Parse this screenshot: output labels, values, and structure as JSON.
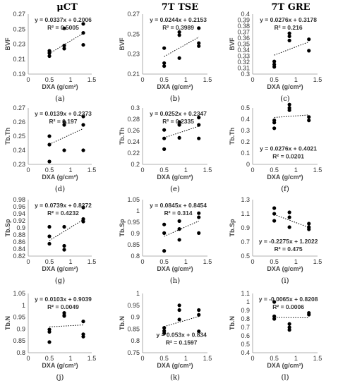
{
  "column_titles": [
    "μCT",
    "7T TSE",
    "7T GRE"
  ],
  "chart_data": [
    {
      "type": "scatter",
      "panel_label": "(a)",
      "xlabel": "DXA (g/cm²)",
      "ylabel": "BVF",
      "xlim": [
        0,
        1.5
      ],
      "ylim": [
        0.19,
        0.27
      ],
      "yticks": [
        "0.19",
        "0.21",
        "0.23",
        "0.25",
        "0.27"
      ],
      "xticks": [
        "0",
        "0.5",
        "1",
        "1.5"
      ],
      "equation": "y = 0.0337x + 0.2006",
      "r2": "R² = 0.5005",
      "slope": 0.0337,
      "intercept": 0.2006,
      "points": [
        [
          0.5,
          0.221
        ],
        [
          0.5,
          0.218
        ],
        [
          0.5,
          0.214
        ],
        [
          0.85,
          0.251
        ],
        [
          0.85,
          0.228
        ],
        [
          0.85,
          0.224
        ],
        [
          1.3,
          0.257
        ],
        [
          1.3,
          0.245
        ],
        [
          1.3,
          0.229
        ]
      ]
    },
    {
      "type": "scatter",
      "panel_label": "(b)",
      "xlabel": "DXA (g/cm²)",
      "ylabel": "BVF",
      "xlim": [
        0,
        1.5
      ],
      "ylim": [
        0.21,
        0.27
      ],
      "yticks": [
        "0.21",
        "0.23",
        "0.25",
        "0.27"
      ],
      "xticks": [
        "0",
        "0.5",
        "1",
        "1.5"
      ],
      "equation": "y = 0.0244x + 0.2153",
      "r2": "R² = 0.3989",
      "slope": 0.0244,
      "intercept": 0.2153,
      "points": [
        [
          0.5,
          0.236
        ],
        [
          0.5,
          0.221
        ],
        [
          0.5,
          0.218
        ],
        [
          0.85,
          0.252
        ],
        [
          0.85,
          0.249
        ],
        [
          0.85,
          0.226
        ],
        [
          1.3,
          0.256
        ],
        [
          1.3,
          0.241
        ],
        [
          1.3,
          0.238
        ]
      ]
    },
    {
      "type": "scatter",
      "panel_label": "(c)",
      "xlabel": "DXA (g/cm²)",
      "ylabel": "BVF",
      "xlim": [
        0,
        1.5
      ],
      "ylim": [
        0.3,
        0.4
      ],
      "yticks": [
        "0.3",
        "0.31",
        "0.32",
        "0.33",
        "0.34",
        "0.35",
        "0.36",
        "0.37",
        "0.38",
        "0.39",
        "0.4"
      ],
      "xticks": [
        "0",
        "0.5",
        "1",
        "1.5"
      ],
      "equation": "y = 0.0276x + 0.3178",
      "r2": "R² = 0.216",
      "slope": 0.0276,
      "intercept": 0.3178,
      "points": [
        [
          0.5,
          0.321
        ],
        [
          0.5,
          0.316
        ],
        [
          0.5,
          0.312
        ],
        [
          0.85,
          0.368
        ],
        [
          0.85,
          0.363
        ],
        [
          0.85,
          0.356
        ],
        [
          1.3,
          0.358
        ],
        [
          1.3,
          0.339
        ]
      ]
    },
    {
      "type": "scatter",
      "panel_label": "(d)",
      "xlabel": "DXA (g/cm²)",
      "ylabel": "Tb.Th",
      "xlim": [
        0,
        1.5
      ],
      "ylim": [
        0.23,
        0.27
      ],
      "yticks": [
        "0.23",
        "0.24",
        "0.25",
        "0.26",
        "0.27"
      ],
      "xticks": [
        "0",
        "0.5",
        "1",
        "1.5"
      ],
      "equation": "y = 0.0139x + 0.2373",
      "r2": "R² = 0.197",
      "slope": 0.0139,
      "intercept": 0.2373,
      "points": [
        [
          0.5,
          0.25
        ],
        [
          0.5,
          0.244
        ],
        [
          0.5,
          0.232
        ],
        [
          0.85,
          0.26
        ],
        [
          0.85,
          0.258
        ],
        [
          0.85,
          0.24
        ],
        [
          1.3,
          0.264
        ],
        [
          1.3,
          0.258
        ],
        [
          1.3,
          0.24
        ]
      ]
    },
    {
      "type": "scatter",
      "panel_label": "(e)",
      "xlabel": "DXA (g/cm²)",
      "ylabel": "Tb.Th",
      "xlim": [
        0,
        1.5
      ],
      "ylim": [
        0.2,
        0.3
      ],
      "yticks": [
        "0.2",
        "0.22",
        "0.24",
        "0.26",
        "0.28",
        "0.3"
      ],
      "xticks": [
        "0",
        "0.5",
        "1",
        "1.5"
      ],
      "equation": "y = 0.0252x + 0.2347",
      "r2": "R² = 0.2335",
      "slope": 0.0252,
      "intercept": 0.2347,
      "points": [
        [
          0.5,
          0.261
        ],
        [
          0.5,
          0.246
        ],
        [
          0.5,
          0.227
        ],
        [
          0.85,
          0.275
        ],
        [
          0.85,
          0.27
        ],
        [
          0.85,
          0.247
        ],
        [
          1.3,
          0.283
        ],
        [
          1.3,
          0.27
        ],
        [
          1.3,
          0.246
        ]
      ]
    },
    {
      "type": "scatter",
      "panel_label": "(f)",
      "xlabel": "DXA (g/cm²)",
      "ylabel": "Tb.Th",
      "xlim": [
        0,
        1.5
      ],
      "ylim": [
        0,
        0.5
      ],
      "yticks": [
        "0",
        "0.1",
        "0.2",
        "0.3",
        "0.4",
        "0.5"
      ],
      "xticks": [
        "0",
        "0.5",
        "1",
        "1.5"
      ],
      "equation": "y = 0.0276x + 0.4021",
      "r2": "R² = 0.0201",
      "slope": 0.0276,
      "intercept": 0.4021,
      "points": [
        [
          0.5,
          0.39
        ],
        [
          0.5,
          0.37
        ],
        [
          0.5,
          0.32
        ],
        [
          0.85,
          0.53
        ],
        [
          0.85,
          0.5
        ],
        [
          0.85,
          0.48
        ],
        [
          1.3,
          0.42
        ],
        [
          1.3,
          0.39
        ]
      ]
    },
    {
      "type": "scatter",
      "panel_label": "(g)",
      "xlabel": "DXA (g/cm²)",
      "ylabel": "Tb.Sp",
      "xlim": [
        0,
        1.5
      ],
      "ylim": [
        0.82,
        0.98
      ],
      "yticks": [
        "0.82",
        "0.84",
        "0.86",
        "0.88",
        "0.9",
        "0.92",
        "0.94",
        "0.96",
        "0.98"
      ],
      "xticks": [
        "0",
        "0.5",
        "1",
        "1.5"
      ],
      "equation": "y = 0.0739x + 0.8272",
      "r2": "R² = 0.4232",
      "slope": 0.0739,
      "intercept": 0.8272,
      "points": [
        [
          0.5,
          0.903
        ],
        [
          0.5,
          0.876
        ],
        [
          0.5,
          0.855
        ],
        [
          0.85,
          0.903
        ],
        [
          0.85,
          0.849
        ],
        [
          0.85,
          0.838
        ],
        [
          1.3,
          0.958
        ],
        [
          1.3,
          0.925
        ],
        [
          1.3,
          0.918
        ]
      ]
    },
    {
      "type": "scatter",
      "panel_label": "(h)",
      "xlabel": "DXA (g/cm²)",
      "ylabel": "Tb.Sp",
      "xlim": [
        0,
        1.5
      ],
      "ylim": [
        0.8,
        1.05
      ],
      "yticks": [
        "0.8",
        "0.85",
        "0.9",
        "0.95",
        "1",
        "1.05"
      ],
      "xticks": [
        "0",
        "0.5",
        "1",
        "1.5"
      ],
      "equation": "y = 0.0845x + 0.8454",
      "r2": "R² = 0.314",
      "slope": 0.0845,
      "intercept": 0.8454,
      "points": [
        [
          0.5,
          0.94
        ],
        [
          0.5,
          0.902
        ],
        [
          0.5,
          0.823
        ],
        [
          0.85,
          0.955
        ],
        [
          0.85,
          0.92
        ],
        [
          0.85,
          0.872
        ],
        [
          1.3,
          0.99
        ],
        [
          1.3,
          0.972
        ],
        [
          1.3,
          0.902
        ]
      ]
    },
    {
      "type": "scatter",
      "panel_label": "(i)",
      "xlabel": "DXA (g/cm²)",
      "ylabel": "Tb.Sp",
      "xlim": [
        0,
        1.5
      ],
      "ylim": [
        0.5,
        1.3
      ],
      "yticks": [
        "0.5",
        "0.7",
        "0.9",
        "1.1",
        "1.3"
      ],
      "xticks": [
        "0",
        "0.5",
        "1",
        "1.5"
      ],
      "equation": "y = -0.2275x + 1.2022",
      "r2": "R² = 0.475",
      "slope": -0.2275,
      "intercept": 1.2022,
      "points": [
        [
          0.5,
          1.18
        ],
        [
          0.5,
          1.1
        ],
        [
          0.5,
          1.0
        ],
        [
          0.85,
          1.12
        ],
        [
          0.85,
          1.05
        ],
        [
          0.85,
          0.91
        ],
        [
          1.3,
          0.96
        ],
        [
          1.3,
          0.91
        ],
        [
          1.3,
          0.88
        ]
      ]
    },
    {
      "type": "scatter",
      "panel_label": "(j)",
      "xlabel": "DXA (g/cm²)",
      "ylabel": "Tb.N",
      "xlim": [
        0,
        1.5
      ],
      "ylim": [
        0.8,
        1.05
      ],
      "yticks": [
        "0.8",
        "0.85",
        "0.9",
        "0.95",
        "1",
        "1.05"
      ],
      "xticks": [
        "0",
        "0.5",
        "1",
        "1.5"
      ],
      "equation": "y = 0.0103x + 0.9039",
      "r2": "R² = 0.0049",
      "slope": 0.0103,
      "intercept": 0.9039,
      "points": [
        [
          0.5,
          0.898
        ],
        [
          0.5,
          0.888
        ],
        [
          0.5,
          0.845
        ],
        [
          0.85,
          0.968
        ],
        [
          0.85,
          0.958
        ],
        [
          0.85,
          0.955
        ],
        [
          1.3,
          0.932
        ],
        [
          1.3,
          0.878
        ],
        [
          1.3,
          0.868
        ]
      ]
    },
    {
      "type": "scatter",
      "panel_label": "(k)",
      "xlabel": "DXA (g/cm²)",
      "ylabel": "Tb.N",
      "xlim": [
        0,
        1.5
      ],
      "ylim": [
        0.75,
        1.0
      ],
      "yticks": [
        "0.75",
        "0.8",
        "0.85",
        "0.9",
        "0.95",
        "1"
      ],
      "xticks": [
        "0",
        "0.5",
        "1",
        "1.5"
      ],
      "equation": "y = 0.053x + 0.834",
      "r2": "R² = 0.1597",
      "slope": 0.053,
      "intercept": 0.834,
      "points": [
        [
          0.5,
          0.855
        ],
        [
          0.5,
          0.842
        ],
        [
          0.5,
          0.832
        ],
        [
          0.85,
          0.95
        ],
        [
          0.85,
          0.93
        ],
        [
          0.85,
          0.89
        ],
        [
          1.3,
          0.93
        ],
        [
          1.3,
          0.91
        ],
        [
          1.3,
          0.84
        ]
      ]
    },
    {
      "type": "scatter",
      "panel_label": "(l)",
      "xlabel": "DXA (g/cm²)",
      "ylabel": "Tb.N",
      "xlim": [
        0,
        1.5
      ],
      "ylim": [
        0.4,
        1.1
      ],
      "yticks": [
        "0.4",
        "0.5",
        "0.6",
        "0.7",
        "0.8",
        "0.9",
        "1",
        "1.1"
      ],
      "xticks": [
        "0",
        "0.5",
        "1",
        "1.5"
      ],
      "equation": "y = -0.0065x + 0.8208",
      "r2": "R² = 0.0006",
      "slope": -0.0065,
      "intercept": 0.8208,
      "points": [
        [
          0.5,
          1.0
        ],
        [
          0.5,
          0.83
        ],
        [
          0.5,
          0.8
        ],
        [
          0.85,
          0.74
        ],
        [
          0.85,
          0.7
        ],
        [
          0.85,
          0.67
        ],
        [
          1.3,
          0.87
        ],
        [
          1.3,
          0.85
        ]
      ]
    }
  ]
}
